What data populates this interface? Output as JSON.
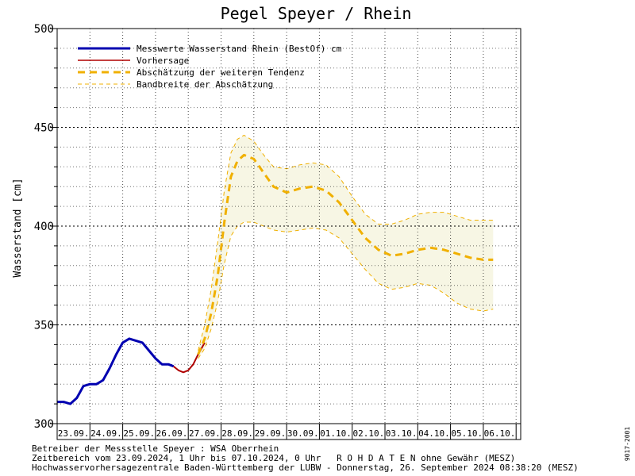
{
  "chart_data": {
    "type": "line",
    "title": "Pegel Speyer / Rhein",
    "ylabel": "Wasserstand [cm]",
    "ylim": [
      300,
      500
    ],
    "yticks": [
      300,
      350,
      400,
      450,
      500
    ],
    "x_start": "23.09",
    "x_days": [
      "23.09.",
      "24.09.",
      "25.09.",
      "26.09.",
      "27.09.",
      "28.09.",
      "29.09.",
      "30.09.",
      "01.10.",
      "02.10.",
      "03.10.",
      "04.10.",
      "05.10.",
      "06.10."
    ],
    "grid": true,
    "legend_position": "top-left",
    "legend": [
      {
        "label": "Messwerte Wasserstand Rhein (BestOf)  cm",
        "color": "#0000b0",
        "style": "solid-thick"
      },
      {
        "label": "Vorhersage",
        "color": "#b00000",
        "style": "solid"
      },
      {
        "label": "Abschätzung der weiteren Tendenz",
        "color": "#f0b000",
        "style": "dashed-thick"
      },
      {
        "label": "Bandbreite der Abschätzung",
        "color": "#f0b000",
        "style": "dashed-thin"
      }
    ],
    "series": [
      {
        "name": "Messwerte Wasserstand Rhein (BestOf)  cm",
        "color": "#0000b0",
        "x_days": [
          0.0,
          0.2,
          0.4,
          0.6,
          0.8,
          1.0,
          1.2,
          1.4,
          1.6,
          1.8,
          2.0,
          2.2,
          2.4,
          2.6,
          2.8,
          3.0,
          3.2,
          3.4,
          3.55
        ],
        "y": [
          311,
          311,
          310,
          313,
          319,
          320,
          320,
          322,
          328,
          335,
          341,
          343,
          342,
          341,
          337,
          333,
          330,
          330,
          329
        ]
      },
      {
        "name": "Vorhersage",
        "color": "#b00000",
        "x_days": [
          3.55,
          3.7,
          3.85,
          4.0,
          4.15,
          4.3,
          4.5
        ],
        "y": [
          329,
          327,
          326,
          327,
          330,
          335,
          341
        ]
      },
      {
        "name": "Abschätzung der weiteren Tendenz",
        "color": "#f0b000",
        "x_days": [
          4.3,
          4.5,
          4.7,
          4.9,
          5.1,
          5.3,
          5.5,
          5.7,
          6.0,
          6.3,
          6.6,
          7.0,
          7.4,
          7.8,
          8.2,
          8.6,
          9.0,
          9.4,
          9.8,
          10.2,
          10.6,
          11.0,
          11.4,
          11.8,
          12.2,
          12.6,
          13.0,
          13.3
        ],
        "y": [
          335,
          343,
          356,
          375,
          402,
          425,
          433,
          436,
          434,
          427,
          420,
          417,
          419,
          420,
          418,
          412,
          403,
          394,
          388,
          385,
          386,
          388,
          389,
          388,
          386,
          384,
          383,
          383
        ]
      }
    ],
    "band": {
      "name": "Bandbreite der Abschätzung",
      "color": "#f0b000",
      "fill": "#f7f6e4",
      "x_days": [
        4.3,
        4.5,
        4.7,
        4.9,
        5.1,
        5.3,
        5.5,
        5.7,
        6.0,
        6.3,
        6.6,
        7.0,
        7.4,
        7.8,
        8.2,
        8.6,
        9.0,
        9.4,
        9.8,
        10.2,
        10.6,
        11.0,
        11.4,
        11.8,
        12.2,
        12.6,
        13.0,
        13.3
      ],
      "upper": [
        337,
        350,
        368,
        392,
        418,
        437,
        444,
        446,
        443,
        436,
        430,
        429,
        431,
        432,
        431,
        425,
        415,
        406,
        401,
        401,
        403,
        406,
        407,
        407,
        405,
        403,
        403,
        403
      ],
      "lower": [
        333,
        338,
        348,
        362,
        381,
        395,
        400,
        402,
        402,
        400,
        398,
        397,
        398,
        399,
        398,
        394,
        386,
        378,
        371,
        368,
        369,
        371,
        370,
        366,
        361,
        358,
        357,
        358
      ]
    }
  },
  "footer": {
    "line1": "Betreiber der Messstelle Speyer : WSA Oberrhein",
    "line2": "Zeitbereich vom 23.09.2024, 1 Uhr bis 07.10.2024, 0 Uhr   R O H D A T E N ohne Gewähr (MESZ)",
    "line3": "Hochwasservorhersagezentrale Baden-Württemberg der LUBW - Donnerstag, 26. September 2024 08:38:20 (MESZ)"
  },
  "side_code": "9017-2001"
}
